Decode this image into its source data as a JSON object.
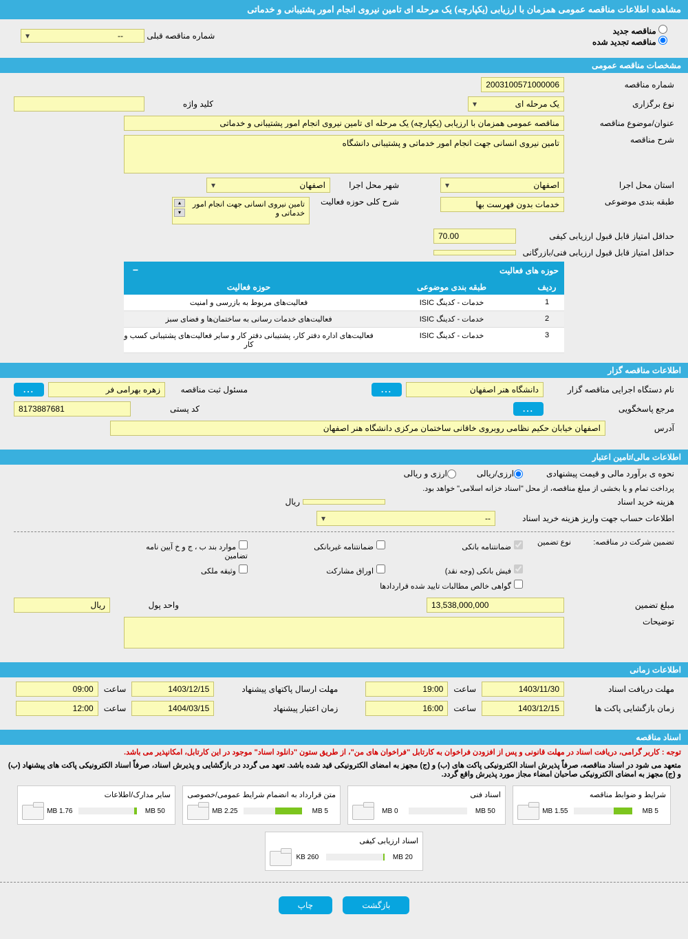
{
  "header": {
    "title": "مشاهده اطلاعات مناقصه عمومی همزمان با ارزیابی (یکپارچه) یک مرحله ای تامین نیروی انجام امور پشتیبانی و خدماتی"
  },
  "tender_mode": {
    "new_label": "مناقصه جدید",
    "renewed_label": "مناقصه تجدید شده",
    "prev_number_label": "شماره مناقصه قبلی",
    "prev_number_value": "--"
  },
  "sections": {
    "general": "مشخصات مناقصه عمومی",
    "organizer": "اطلاعات مناقصه گزار",
    "financial": "اطلاعات مالی/تامین اعتبار",
    "timing": "اطلاعات زمانی",
    "documents": "اسناد مناقصه"
  },
  "general": {
    "tender_number_label": "شماره مناقصه",
    "tender_number": "2003100571000006",
    "holding_type_label": "نوع برگزاری",
    "holding_type": "یک مرحله ای",
    "keyword_label": "کلید واژه",
    "keyword": "",
    "title_label": "عنوان/موضوع مناقصه",
    "title": "مناقصه عمومی همزمان با ارزیابی (یکپارچه) یک مرحله ای تامین نیروی انجام امور پشتیبانی و خدماتی",
    "desc_label": "شرح مناقصه",
    "desc": "تامین نیروی انسانی جهت انجام امور خدماتی و پشتیبانی دانشگاه",
    "province_label": "استان محل اجرا",
    "province": "اصفهان",
    "city_label": "شهر محل اجرا",
    "city": "اصفهان",
    "category_label": "طبقه بندی موضوعی",
    "category": "خدمات بدون فهرست بها",
    "activity_scope_label": "شرح کلی حوزه فعالیت",
    "activity_scope": "تامین نیروی انسانی جهت انجام امور خدماتی و",
    "min_quality_label": "حداقل امتیاز قابل قبول ارزیابی کیفی",
    "min_quality": "70.00",
    "min_tech_label": "حداقل امتیاز قابل قبول ارزیابی فنی/بازرگانی",
    "min_tech": ""
  },
  "activity_table": {
    "title": "حوزه های فعالیت",
    "cols": {
      "row": "ردیف",
      "cat": "طبقه بندی موضوعی",
      "scope": "حوزه فعالیت"
    },
    "rows": [
      {
        "n": "1",
        "cat": "خدمات - کدینگ ISIC",
        "scope": "فعالیت‌های مربوط به بازرسی و امنیت"
      },
      {
        "n": "2",
        "cat": "خدمات - کدینگ ISIC",
        "scope": "فعالیت‌های خدمات رسانی به ساختمان‌ها و فضای سبز"
      },
      {
        "n": "3",
        "cat": "خدمات - کدینگ ISIC",
        "scope": "فعالیت‌های  اداره دفتر کار، پشتیبانی دفتر کار و سایر فعالیت‌های پشتیبانی کسب و کار"
      }
    ]
  },
  "organizer": {
    "exec_name_label": "نام دستگاه اجرایی مناقصه گزار",
    "exec_name": "دانشگاه هنر اصفهان",
    "reg_officer_label": "مسئول ثبت مناقصه",
    "reg_officer": "زهره بهرامی فر",
    "response_ref_label": "مرجع پاسخگویی",
    "postcode_label": "کد پستی",
    "postcode": "8173887681",
    "address_label": "آدرس",
    "address": "اصفهان خیابان حکیم نظامی روبروی خاقانی  ساختمان مرکزی دانشگاه هنر اصفهان"
  },
  "financial": {
    "estimate_label": "نحوه ی برآورد مالی و قیمت پیشنهادی",
    "opt_fx": "ارزی/ریالی",
    "opt_both": "ارزی و ریالی",
    "note": "پرداخت تمام و یا بخشی از مبلغ مناقصه، از محل \"اسناد خزانه اسلامی\" خواهد بود.",
    "doc_cost_label": "هزینه خرید اسناد",
    "doc_cost_unit": "ریال",
    "account_label": "اطلاعات حساب جهت واریز هزینه خرید اسناد",
    "account_value": "--",
    "guarantee_type_label": "تضمین شرکت در مناقصه:",
    "guarantee_type_sub": "نوع تضمین",
    "chk": {
      "bank_guarantee": "ضمانتنامه بانکی",
      "nonbank_guarantee": "ضمانتنامه غیربانکی",
      "clause_bhj": "موارد بند ب ، ج و خ آیین نامه تضامین",
      "bank_receipt": "فیش بانکی (وجه نقد)",
      "participation_bonds": "اوراق مشارکت",
      "property_pledge": "وثیقه ملکی",
      "net_receivables": "گواهی خالص مطالبات تایید شده قراردادها"
    },
    "guarantee_amount_label": "مبلغ تضمین",
    "guarantee_amount": "13,538,000,000",
    "unit_label": "واحد پول",
    "unit": "ریال",
    "remarks_label": "توضیحات"
  },
  "timing": {
    "doc_deadline_label": "مهلت دریافت اسناد",
    "doc_deadline_date": "1403/11/30",
    "doc_deadline_time": "19:00",
    "bid_deadline_label": "مهلت ارسال پاکتهای پیشنهاد",
    "bid_deadline_date": "1403/12/15",
    "bid_deadline_time": "09:00",
    "opening_label": "زمان بازگشایی پاکت ها",
    "opening_date": "1403/12/15",
    "opening_time": "16:00",
    "validity_label": "زمان اعتبار پیشنهاد",
    "validity_date": "1404/03/15",
    "validity_time": "12:00",
    "time_word": "ساعت"
  },
  "docs": {
    "notice1": "توجه : کاربر گرامی، دریافت اسناد در مهلت قانونی و پس از افزودن فراخوان به کارتابل \"فراخوان های من\"، از طریق ستون \"دانلود اسناد\" موجود در این کارتابل، امکانپذیر می باشد.",
    "notice2": "متعهد می شود در اسناد مناقصه، صرفاً پذیرش اسناد الکترونیکی پاکت های (ب) و (ج) مجهز به امضای الکترونیکی قید شده باشد. تعهد می گردد در بازگشایی و پذیرش اسناد، صرفاً اسناد الکترونیکی پاکت های پیشنهاد (ب) و (ج) مجهز به امضای الکترونیکی صاحبان امضاء مجاز مورد پذیرش واقع گردد.",
    "files": [
      {
        "name": "شرایط و ضوابط مناقصه",
        "max": "5 MB",
        "used": "1.55 MB",
        "pct": 31
      },
      {
        "name": "اسناد فنی",
        "max": "50 MB",
        "used": "0 MB",
        "pct": 0
      },
      {
        "name": "متن قرارداد به انضمام شرایط عمومی/خصوصی",
        "max": "5 MB",
        "used": "2.25 MB",
        "pct": 45
      },
      {
        "name": "سایر مدارک/اطلاعات",
        "max": "50 MB",
        "used": "1.76 MB",
        "pct": 4
      },
      {
        "name": "اسناد ارزیابی کیفی",
        "max": "20 MB",
        "used": "260 KB",
        "pct": 2
      }
    ]
  },
  "buttons": {
    "back": "بازگشت",
    "print": "چاپ"
  }
}
